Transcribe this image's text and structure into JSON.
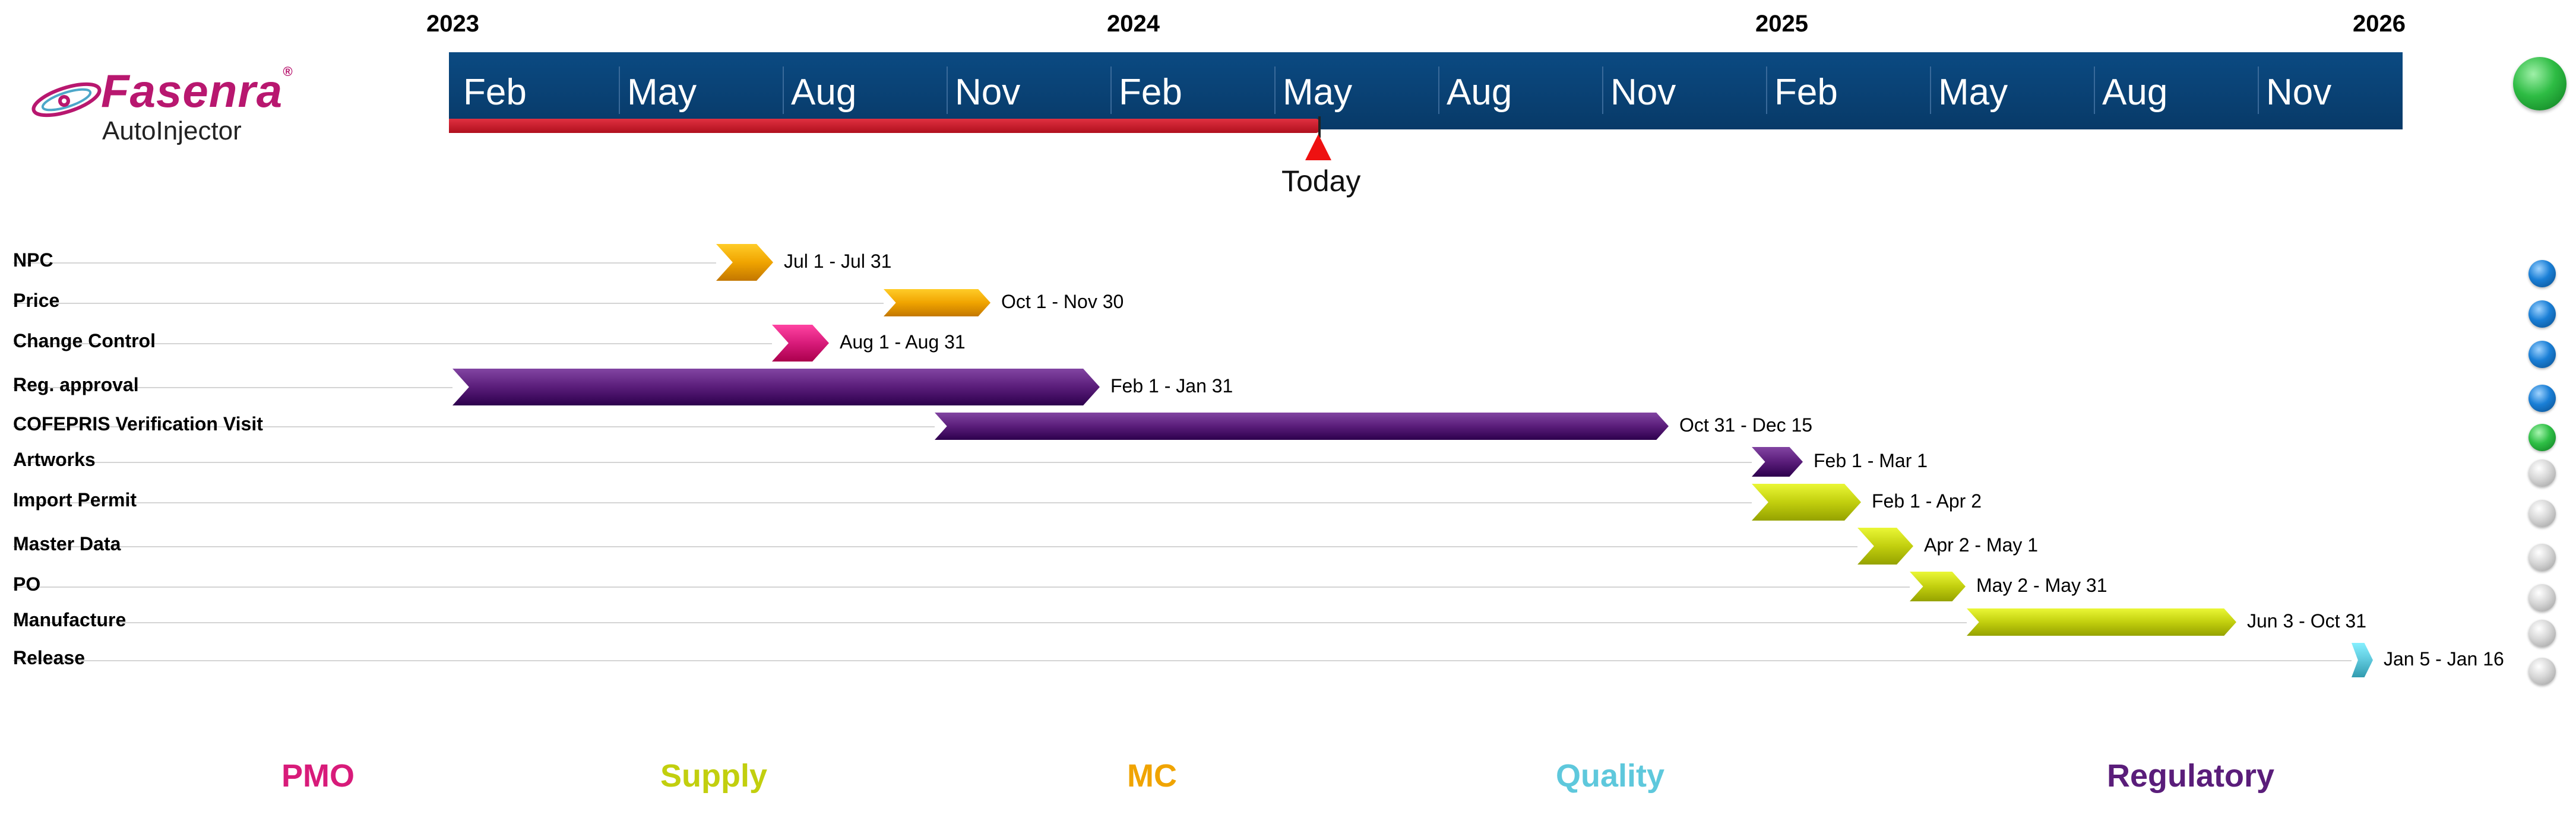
{
  "brand": {
    "name": "Fasenra",
    "reg": "®",
    "product": "AutoInjector"
  },
  "years": [
    "2023",
    "2024",
    "2025",
    "2026"
  ],
  "months": [
    "Feb",
    "May",
    "Aug",
    "Nov",
    "Feb",
    "May",
    "Aug",
    "Nov",
    "Feb",
    "May",
    "Aug",
    "Nov"
  ],
  "today_label": "Today",
  "colors": {
    "timeline": "#0b4a82",
    "progress": "#c8141f",
    "pmo": "#d81b7a",
    "supply": "#c2cf0e",
    "mc": "#f0a400",
    "quality": "#5ec8dc",
    "regulatory": "#5a1d7a"
  },
  "tasks": [
    {
      "label": "NPC",
      "dates": "Jul 1 - Jul 31",
      "category": "mc",
      "status": "blue"
    },
    {
      "label": "Price",
      "dates": "Oct 1 - Nov 30",
      "category": "mc",
      "status": "blue"
    },
    {
      "label": "Change Control",
      "dates": "Aug 1 - Aug 31",
      "category": "pmo",
      "status": "blue"
    },
    {
      "label": "Reg. approval",
      "dates": "Feb 1 - Jan 31",
      "category": "regulatory",
      "status": "blue"
    },
    {
      "label": "COFEPRIS Verification Visit",
      "dates": "Oct 31 - Dec 15",
      "category": "regulatory",
      "status": "green"
    },
    {
      "label": "Artworks",
      "dates": "Feb 1 - Mar 1",
      "category": "regulatory",
      "status": "grey"
    },
    {
      "label": "Import Permit",
      "dates": "Feb 1 - Apr 2",
      "category": "supply",
      "status": "grey"
    },
    {
      "label": "Master Data",
      "dates": "Apr 2 - May 1",
      "category": "supply",
      "status": "grey"
    },
    {
      "label": "PO",
      "dates": "May 2 - May 31",
      "category": "supply",
      "status": "grey"
    },
    {
      "label": "Manufacture",
      "dates": "Jun 3 - Oct 31",
      "category": "supply",
      "status": "grey"
    },
    {
      "label": "Release",
      "dates": "Jan 5 - Jan 16",
      "category": "quality",
      "status": "grey"
    }
  ],
  "legend": {
    "pmo": "PMO",
    "supply": "Supply",
    "mc": "MC",
    "quality": "Quality",
    "regulatory": "Regulatory"
  }
}
